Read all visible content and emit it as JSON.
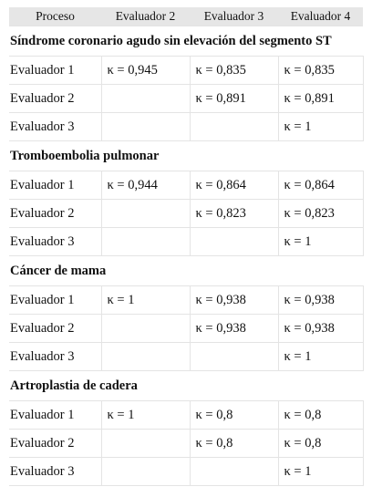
{
  "header": {
    "columns": [
      "Proceso",
      "Evaluador 2",
      "Evaluador 3",
      "Evaluador 4"
    ]
  },
  "sections": [
    {
      "title": "Síndrome coronario agudo sin elevación del segmento ST",
      "rows": [
        {
          "label": "Evaluador 1",
          "cells": [
            "κ = 0,945",
            "κ = 0,835",
            "κ = 0,835"
          ]
        },
        {
          "label": "Evaluador 2",
          "cells": [
            "",
            "κ = 0,891",
            "κ = 0,891"
          ]
        },
        {
          "label": "Evaluador 3",
          "cells": [
            "",
            "",
            "κ = 1"
          ]
        }
      ]
    },
    {
      "title": "Tromboembolia pulmonar",
      "rows": [
        {
          "label": "Evaluador 1",
          "cells": [
            "κ = 0,944",
            "κ = 0,864",
            "κ = 0,864"
          ]
        },
        {
          "label": "Evaluador 2",
          "cells": [
            "",
            "κ = 0,823",
            "κ = 0,823"
          ]
        },
        {
          "label": "Evaluador 3",
          "cells": [
            "",
            "",
            "κ = 1"
          ]
        }
      ]
    },
    {
      "title": "Cáncer de mama",
      "rows": [
        {
          "label": "Evaluador 1",
          "cells": [
            "κ = 1",
            "κ = 0,938",
            "κ = 0,938"
          ]
        },
        {
          "label": "Evaluador 2",
          "cells": [
            "",
            "κ = 0,938",
            "κ = 0,938"
          ]
        },
        {
          "label": "Evaluador 3",
          "cells": [
            "",
            "",
            "κ = 1"
          ]
        }
      ]
    },
    {
      "title": "Artroplastia de cadera",
      "rows": [
        {
          "label": "Evaluador 1",
          "cells": [
            "κ = 1",
            "κ = 0,8",
            "κ = 0,8"
          ]
        },
        {
          "label": "Evaluador 2",
          "cells": [
            "",
            "κ = 0,8",
            "κ = 0,8"
          ]
        },
        {
          "label": "Evaluador 3",
          "cells": [
            "",
            "",
            "κ = 1"
          ]
        }
      ]
    }
  ]
}
